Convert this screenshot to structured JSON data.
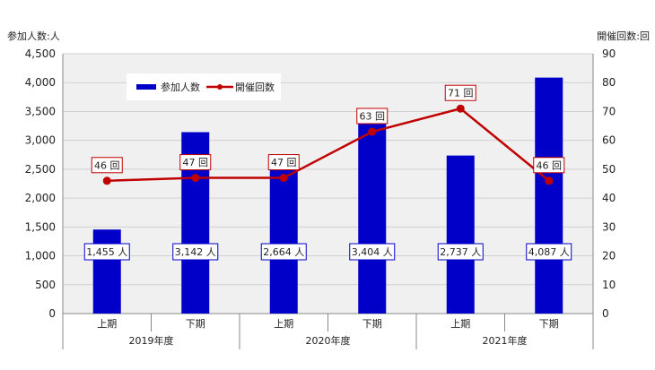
{
  "chart_data": {
    "type": "bar",
    "title": "",
    "ylabel_left": "参加人数:人",
    "ylabel_right": "開催回数:回",
    "categories": [
      "上期",
      "下期",
      "上期",
      "下期",
      "上期",
      "下期"
    ],
    "groups": [
      {
        "label": "2019年度",
        "span": 2
      },
      {
        "label": "2020年度",
        "span": 2
      },
      {
        "label": "2021年度",
        "span": 2
      }
    ],
    "ylim_left": [
      0,
      4500
    ],
    "yticks_left": [
      "0",
      "500",
      "1,000",
      "1,500",
      "2,000",
      "2,500",
      "3,000",
      "3,500",
      "4,000",
      "4,500"
    ],
    "ylim_right": [
      0,
      90
    ],
    "yticks_right": [
      "0",
      "10",
      "20",
      "30",
      "40",
      "50",
      "60",
      "70",
      "80",
      "90"
    ],
    "grid": true,
    "legend_position": "top-left",
    "series": [
      {
        "name": "参加人数",
        "kind": "bar",
        "axis": "left",
        "color": "#0000c8",
        "values": [
          1455,
          3142,
          2664,
          3404,
          2737,
          4087
        ],
        "labels": [
          "1,455 人",
          "3,142 人",
          "2,664 人",
          "3,404 人",
          "2,737 人",
          "4,087 人"
        ]
      },
      {
        "name": "開催回数",
        "kind": "line",
        "axis": "right",
        "color": "#c00000",
        "values": [
          46,
          47,
          47,
          63,
          71,
          46
        ],
        "labels": [
          "46 回",
          "47 回",
          "47 回",
          "63 回",
          "71 回",
          "46 回"
        ]
      }
    ]
  }
}
